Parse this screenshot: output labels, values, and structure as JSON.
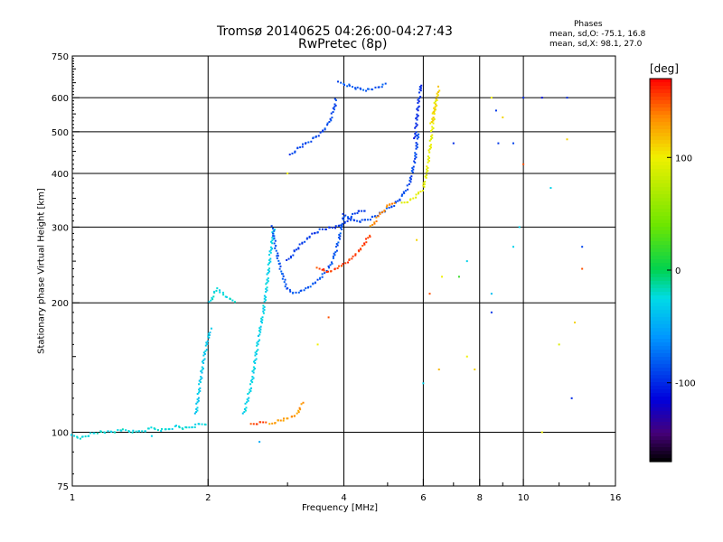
{
  "header": {
    "title_line1": "Tromsø 20140625 04:26:00-04:27:43",
    "title_line2": "RwPretec (8p)",
    "stats_header": "Phases",
    "stats_line1": "mean, sd,O: -75.1, 16.8",
    "stats_line2": "mean, sd,X:  98.1, 27.0"
  },
  "colorbar": {
    "unit": "[deg]",
    "ticks": [
      {
        "value": 100,
        "label": "100"
      },
      {
        "value": 0,
        "label": "0"
      },
      {
        "value": -100,
        "label": "-100"
      }
    ],
    "range": [
      -170,
      170
    ]
  },
  "chart_data": {
    "type": "scatter",
    "title": "Tromsø 20140625 04:26:00-04:27:43",
    "subtitle": "RwPretec (8p)",
    "xlabel": "Frequency [MHz]",
    "ylabel": "Stationary phase Virtual Height [km]",
    "xscale": "log",
    "yscale": "log",
    "xlim": [
      1,
      16
    ],
    "ylim": [
      75,
      750
    ],
    "xticks": [
      1,
      2,
      4,
      6,
      8,
      10,
      16
    ],
    "xtick_labels": [
      "1",
      "2",
      "4",
      "6",
      "8",
      "10",
      "16"
    ],
    "xgrid": [
      2,
      4,
      6,
      8,
      10
    ],
    "yticks": [
      75,
      100,
      200,
      300,
      400,
      500,
      600,
      750
    ],
    "ytick_labels": [
      "75",
      "100",
      "200",
      "300",
      "400",
      "500",
      "600",
      "750"
    ],
    "ygrid": [
      100,
      200,
      300,
      400,
      500,
      600
    ],
    "colorbar_label": "[deg]",
    "segments": [
      {
        "f": [
          1.0,
          1.05,
          1.1,
          1.15,
          1.2,
          1.3,
          1.4,
          1.5,
          1.6,
          1.7,
          1.8,
          1.9,
          2.0
        ],
        "h": [
          98,
          97,
          99,
          100,
          100,
          101,
          100,
          102,
          101,
          103,
          102,
          104,
          105
        ],
        "phase": -25
      },
      {
        "f": [
          1.88,
          1.92,
          1.96,
          2.0,
          2.03
        ],
        "h": [
          110,
          130,
          150,
          165,
          175
        ],
        "phase": -35
      },
      {
        "f": [
          2.02,
          2.06,
          2.1,
          2.15,
          2.2,
          2.25,
          2.3
        ],
        "h": [
          200,
          210,
          215,
          210,
          205,
          203,
          200
        ],
        "phase": -25
      },
      {
        "f": [
          2.4,
          2.5,
          2.55,
          2.6,
          2.65,
          2.7,
          2.75,
          2.8
        ],
        "h": [
          110,
          130,
          150,
          170,
          190,
          220,
          260,
          300
        ],
        "phase": -30
      },
      {
        "f": [
          2.78,
          2.82,
          2.88,
          2.95,
          3.0,
          3.1,
          3.2,
          3.3,
          3.4,
          3.5,
          3.6,
          3.7,
          3.8,
          3.9,
          4.0
        ],
        "h": [
          300,
          270,
          245,
          225,
          215,
          210,
          212,
          215,
          220,
          225,
          232,
          240,
          255,
          280,
          320
        ],
        "phase": -85
      },
      {
        "f": [
          3.0,
          3.1,
          3.2,
          3.3,
          3.4,
          3.55,
          3.7,
          3.85,
          4.0,
          4.1,
          4.2,
          4.3,
          4.5
        ],
        "h": [
          250,
          262,
          272,
          280,
          288,
          295,
          298,
          300,
          305,
          312,
          320,
          325,
          330
        ],
        "phase": -95
      },
      {
        "f": [
          4.0,
          4.2,
          4.4,
          4.6,
          4.8,
          5.0,
          5.2,
          5.4,
          5.6,
          5.75,
          5.85
        ],
        "h": [
          320,
          310,
          310,
          315,
          322,
          330,
          340,
          355,
          380,
          430,
          500
        ],
        "phase": -90
      },
      {
        "f": [
          5.75,
          5.8,
          5.85,
          5.9,
          5.95
        ],
        "h": [
          480,
          530,
          580,
          620,
          650
        ],
        "phase": -100
      },
      {
        "f": [
          3.05,
          3.15,
          3.25,
          3.4,
          3.55,
          3.7,
          3.8,
          3.85
        ],
        "h": [
          440,
          455,
          465,
          480,
          495,
          520,
          560,
          600
        ],
        "phase": -90
      },
      {
        "f": [
          3.9,
          4.1,
          4.3,
          4.5,
          4.7,
          4.9,
          5.0
        ],
        "h": [
          650,
          640,
          630,
          625,
          630,
          640,
          650
        ],
        "phase": -85
      },
      {
        "f": [
          3.5,
          3.6,
          3.7,
          3.8,
          3.9,
          4.0,
          4.1,
          4.2,
          4.3,
          4.4,
          4.5,
          4.6
        ],
        "h": [
          240,
          238,
          235,
          238,
          242,
          245,
          250,
          255,
          262,
          270,
          280,
          290
        ],
        "phase": 155
      },
      {
        "f": [
          4.6,
          4.8,
          5.0,
          5.2
        ],
        "h": [
          300,
          320,
          335,
          345
        ],
        "phase": 135
      },
      {
        "f": [
          5.4,
          5.6,
          5.8,
          6.0,
          6.1,
          6.2,
          6.3,
          6.4
        ],
        "h": [
          340,
          345,
          355,
          370,
          400,
          450,
          520,
          600
        ],
        "phase": 95
      },
      {
        "f": [
          6.25,
          6.35,
          6.45,
          6.5
        ],
        "h": [
          520,
          560,
          600,
          640
        ],
        "phase": 110
      },
      {
        "f": [
          2.5,
          2.6,
          2.7
        ],
        "h": [
          104,
          105,
          106
        ],
        "phase": 155
      },
      {
        "f": [
          2.75,
          2.85,
          2.95,
          3.05,
          3.15,
          3.25
        ],
        "h": [
          104,
          106,
          107,
          108,
          110,
          118
        ],
        "phase": 130
      }
    ],
    "scatter": [
      {
        "f": 8.5,
        "h": 600,
        "phase": 100
      },
      {
        "f": 9.0,
        "h": 540,
        "phase": 110
      },
      {
        "f": 10.0,
        "h": 600,
        "phase": -100
      },
      {
        "f": 11.0,
        "h": 600,
        "phase": -110
      },
      {
        "f": 12.5,
        "h": 600,
        "phase": -100
      },
      {
        "f": 12.5,
        "h": 480,
        "phase": 110
      },
      {
        "f": 7.0,
        "h": 470,
        "phase": -100
      },
      {
        "f": 8.8,
        "h": 470,
        "phase": -95
      },
      {
        "f": 9.5,
        "h": 470,
        "phase": -90
      },
      {
        "f": 10.0,
        "h": 420,
        "phase": 150
      },
      {
        "f": 11.5,
        "h": 370,
        "phase": -30
      },
      {
        "f": 13.5,
        "h": 270,
        "phase": -90
      },
      {
        "f": 13.5,
        "h": 240,
        "phase": 150
      },
      {
        "f": 9.8,
        "h": 300,
        "phase": -30
      },
      {
        "f": 7.5,
        "h": 250,
        "phase": -30
      },
      {
        "f": 7.2,
        "h": 230,
        "phase": 20
      },
      {
        "f": 9.5,
        "h": 270,
        "phase": -30
      },
      {
        "f": 6.2,
        "h": 210,
        "phase": 150
      },
      {
        "f": 6.6,
        "h": 230,
        "phase": 100
      },
      {
        "f": 8.5,
        "h": 210,
        "phase": -40
      },
      {
        "f": 8.5,
        "h": 190,
        "phase": -95
      },
      {
        "f": 7.5,
        "h": 150,
        "phase": 100
      },
      {
        "f": 6.5,
        "h": 140,
        "phase": 120
      },
      {
        "f": 6.0,
        "h": 130,
        "phase": -30
      },
      {
        "f": 12.0,
        "h": 160,
        "phase": 90
      },
      {
        "f": 13.0,
        "h": 180,
        "phase": 110
      },
      {
        "f": 12.8,
        "h": 120,
        "phase": -100
      },
      {
        "f": 3.0,
        "h": 400,
        "phase": 100
      },
      {
        "f": 2.6,
        "h": 95,
        "phase": -50
      },
      {
        "f": 1.5,
        "h": 98,
        "phase": -30
      },
      {
        "f": 3.7,
        "h": 185,
        "phase": 150
      },
      {
        "f": 3.5,
        "h": 160,
        "phase": 100
      },
      {
        "f": 5.8,
        "h": 280,
        "phase": 110
      },
      {
        "f": 11.0,
        "h": 100,
        "phase": 100
      },
      {
        "f": 7.8,
        "h": 140,
        "phase": 110
      },
      {
        "f": 8.7,
        "h": 560,
        "phase": -95
      }
    ]
  }
}
